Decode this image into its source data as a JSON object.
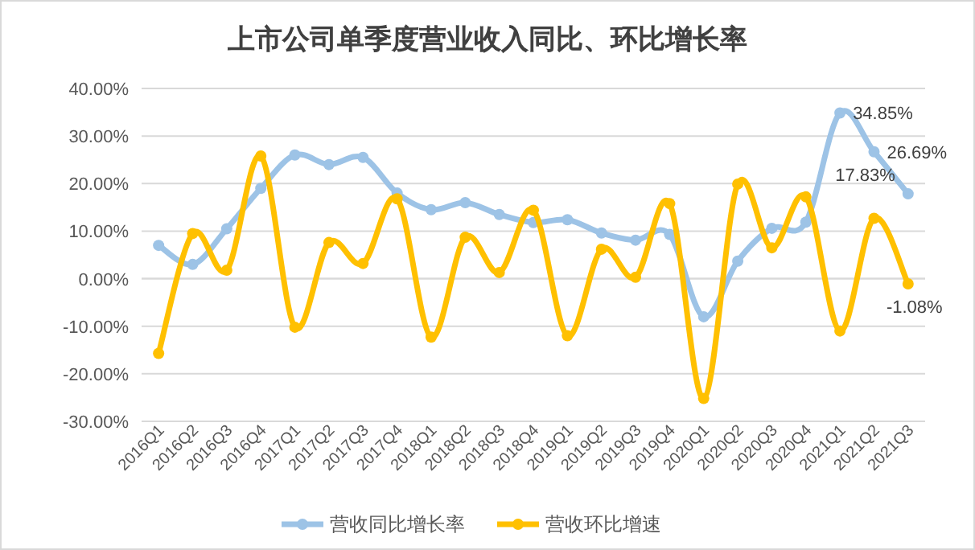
{
  "chart_data": {
    "type": "line",
    "title": "上市公司单季度营业收入同比、环比增长率",
    "categories": [
      "2016Q1",
      "2016Q2",
      "2016Q3",
      "2016Q4",
      "2017Q1",
      "2017Q2",
      "2017Q3",
      "2017Q4",
      "2018Q1",
      "2018Q2",
      "2018Q3",
      "2018Q4",
      "2019Q1",
      "2019Q2",
      "2019Q3",
      "2019Q4",
      "2020Q1",
      "2020Q2",
      "2020Q3",
      "2020Q4",
      "2021Q1",
      "2021Q2",
      "2021Q3"
    ],
    "series": [
      {
        "name": "营收同比增长率",
        "color": "#9dc3e6",
        "values": [
          7,
          3,
          10.5,
          19,
          26,
          24,
          25.5,
          18,
          14.5,
          16,
          13.5,
          11.8,
          12.4,
          9.6,
          8.1,
          9.3,
          -8,
          3.7,
          10.6,
          11.9,
          34.85,
          26.69,
          17.83
        ],
        "value_labels": [
          null,
          null,
          null,
          null,
          null,
          null,
          null,
          null,
          null,
          null,
          null,
          null,
          null,
          null,
          null,
          null,
          null,
          null,
          null,
          null,
          "34.85%",
          "26.69%",
          "17.83%"
        ]
      },
      {
        "name": "营收环比增速",
        "color": "#ffc000",
        "values": [
          -15.7,
          9.5,
          1.8,
          25.8,
          -10.2,
          7.6,
          3.2,
          16.8,
          -12.3,
          8.7,
          1.3,
          14.4,
          -12,
          6.2,
          0.3,
          15.8,
          -25.2,
          19.9,
          6.5,
          17.2,
          -11,
          12.7,
          -1.08
        ],
        "value_labels": [
          null,
          null,
          null,
          null,
          null,
          null,
          null,
          null,
          null,
          null,
          null,
          null,
          null,
          null,
          null,
          null,
          null,
          null,
          null,
          null,
          null,
          null,
          "-1.08%"
        ]
      }
    ],
    "ylim": [
      -30,
      40
    ],
    "yticks": [
      {
        "value": -30,
        "label": "-30.00%"
      },
      {
        "value": -20,
        "label": "-20.00%"
      },
      {
        "value": -10,
        "label": "-10.00%"
      },
      {
        "value": 0,
        "label": "0.00%"
      },
      {
        "value": 10,
        "label": "10.00%"
      },
      {
        "value": 20,
        "label": "20.00%"
      },
      {
        "value": 30,
        "label": "30.00%"
      },
      {
        "value": 40,
        "label": "40.00%"
      }
    ],
    "grid": "y",
    "legend": "bottom",
    "marker": "circle",
    "line_style": "solid"
  }
}
